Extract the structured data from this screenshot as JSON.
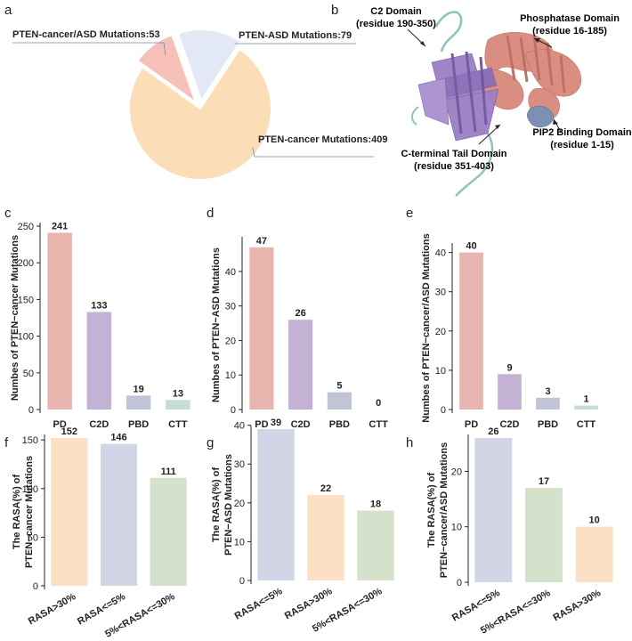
{
  "panels": {
    "a": {
      "label": "a"
    },
    "b": {
      "label": "b"
    },
    "c": {
      "label": "c"
    },
    "d": {
      "label": "d"
    },
    "e": {
      "label": "e"
    },
    "f": {
      "label": "f"
    },
    "g": {
      "label": "g"
    },
    "h": {
      "label": "h"
    }
  },
  "structure": {
    "c2_title": "C2 Domain",
    "c2_range": "(residue 190-350)",
    "pd_title": "Phosphatase Domain",
    "pd_range": "(residue 16-185)",
    "pbd_title": "PIP2 Binding Domain",
    "pbd_range": "(residue 1-15)",
    "ctt_title": "C-terminal Tail Domain",
    "ctt_range": "(residue 351-403)",
    "colors": {
      "c2": "#9b7fc4",
      "pd": "#d9897c",
      "pbd": "#7d8fb3",
      "ctt": "#8fc4b4"
    }
  },
  "chart_data": [
    {
      "id": "a",
      "type": "pie",
      "slices": [
        {
          "label": "PTEN-cancer Mutations:409",
          "value": 409,
          "color": "#fbddb8"
        },
        {
          "label": "PTEN-cancer/ASD Mutations:53",
          "value": 53,
          "color": "#f7c0b8"
        },
        {
          "label": "PTEN-ASD Mutations:79",
          "value": 79,
          "color": "#e3e9f4"
        }
      ]
    },
    {
      "id": "c",
      "type": "bar",
      "categories": [
        "PD",
        "C2D",
        "PBD",
        "CTT"
      ],
      "values": [
        241,
        133,
        19,
        13
      ],
      "colors": [
        "#e8b4ae",
        "#c4b2d4",
        "#c0c4d4",
        "#c6dcd6"
      ],
      "ylabel": "Numbes of PTEN−cancer Mutations",
      "ylim": [
        0,
        250
      ],
      "yticks": [
        0,
        50,
        100,
        150,
        200,
        250
      ]
    },
    {
      "id": "d",
      "type": "bar",
      "categories": [
        "PD",
        "C2D",
        "PBD",
        "CTT"
      ],
      "values": [
        47,
        26,
        5,
        0
      ],
      "colors": [
        "#e8b4ae",
        "#c4b2d4",
        "#c0c4d4",
        "#c6dcd6"
      ],
      "ylabel": "Numbes of PTEN−ASD Mutations",
      "ylim": [
        0,
        49
      ],
      "yticks": [
        0,
        10,
        20,
        30,
        40
      ]
    },
    {
      "id": "e",
      "type": "bar",
      "categories": [
        "PD",
        "C2D",
        "PBD",
        "CTT"
      ],
      "values": [
        40,
        9,
        3,
        1
      ],
      "colors": [
        "#e8b4ae",
        "#c4b2d4",
        "#c0c4d4",
        "#c6dcd6"
      ],
      "ylabel": "Numbes of PTEN−cancer/ASD Mutations",
      "ylim": [
        0,
        41.5
      ],
      "yticks": [
        0,
        10,
        20,
        30,
        40
      ]
    },
    {
      "id": "f",
      "type": "bar",
      "categories": [
        "RASA>30%",
        "RASA<=5%",
        "5%<RASA<=30%"
      ],
      "values": [
        152,
        146,
        111
      ],
      "colors": [
        "#fce0c4",
        "#d2d5e6",
        "#d4e2cc"
      ],
      "ylabel": [
        "The RASA(%) of",
        "PTEN−cancer Mutations"
      ],
      "ylim": [
        0,
        152
      ],
      "yticks": [
        0,
        50,
        100,
        150
      ]
    },
    {
      "id": "g",
      "type": "bar",
      "categories": [
        "RASA<=5%",
        "RASA>30%",
        "5%<RASA<=30%"
      ],
      "values": [
        39,
        22,
        18
      ],
      "colors": [
        "#d2d5e6",
        "#fce0c4",
        "#d4e2cc"
      ],
      "ylabel": [
        "The RASA(%) of",
        "PTEN−ASD Mutations"
      ],
      "ylim": [
        0,
        39
      ],
      "yticks": [
        0,
        10,
        20,
        30,
        40
      ]
    },
    {
      "id": "h",
      "type": "bar",
      "categories": [
        "RASA<=5%",
        "5%<RASA<=30%",
        "RASA>30%"
      ],
      "values": [
        26,
        17,
        10
      ],
      "colors": [
        "#d2d5e6",
        "#d4e2cc",
        "#fce0c4"
      ],
      "ylabel": [
        "The RASA(%) of",
        "PTEN−cancer/ASD Mutations"
      ],
      "ylim": [
        0,
        26
      ],
      "yticks": [
        0,
        10,
        20
      ]
    }
  ]
}
